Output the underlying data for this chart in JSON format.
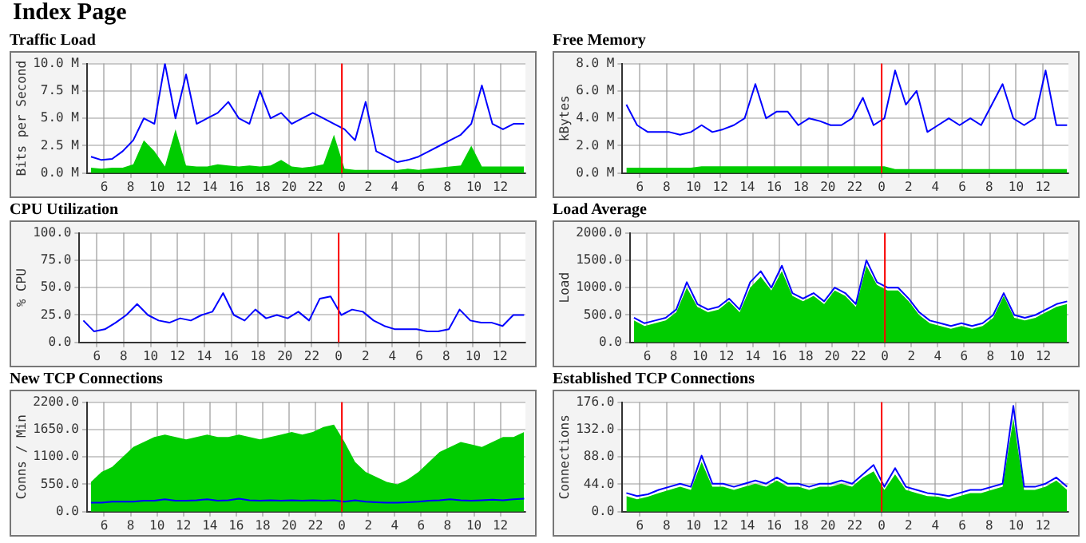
{
  "chart_data": [
    {
      "type": "other",
      "title": "Index Page"
    },
    {
      "type": "line",
      "title": "Traffic Load",
      "ylabel": "Bits per Second",
      "grid": true,
      "marker": "none",
      "x": [
        "--01-01T05:00",
        "--01-01T05:48",
        "--01-01T06:36",
        "--01-01T07:24",
        "--01-01T08:12",
        "--01-01T09:00",
        "--01-01T09:48",
        "--01-01T10:36",
        "--01-01T11:24",
        "--01-01T12:12",
        "--01-01T13:00",
        "--01-01T13:48",
        "--01-01T14:36",
        "--01-01T15:24",
        "--01-01T16:12",
        "--01-01T17:00",
        "--01-01T17:48",
        "--01-01T18:36",
        "--01-01T19:24",
        "--01-01T20:12",
        "--01-01T21:00",
        "--01-01T21:48",
        "--01-01T22:36",
        "--01-01T23:24",
        "--01-02T00:12",
        "--01-02T01:00",
        "--01-02T01:48",
        "--01-02T02:36",
        "--01-02T03:24",
        "--01-02T04:12",
        "--01-02T05:00",
        "--01-02T05:48",
        "--01-02T06:36",
        "--01-02T07:24",
        "--01-02T08:12",
        "--01-02T09:00",
        "--01-02T09:48",
        "--01-02T10:36",
        "--01-02T11:24",
        "--01-02T12:12",
        "--01-02T13:00",
        "--01-02T13:48"
      ],
      "xlim": [
        "--01-01T04:42",
        "--01-02T13:54"
      ],
      "xticks": [
        {
          "value": "--01-01T06:00",
          "label": "6"
        },
        {
          "value": "--01-01T08:00",
          "label": "8"
        },
        {
          "value": "--01-01T10:00",
          "label": "10"
        },
        {
          "value": "--01-01T12:00",
          "label": "12"
        },
        {
          "value": "--01-01T14:00",
          "label": "14"
        },
        {
          "value": "--01-01T16:00",
          "label": "16"
        },
        {
          "value": "--01-01T18:00",
          "label": "18"
        },
        {
          "value": "--01-01T20:00",
          "label": "20"
        },
        {
          "value": "--01-01T22:00",
          "label": "22"
        },
        {
          "value": "--01-02T00:00",
          "label": "0"
        },
        {
          "value": "--01-02T02:00",
          "label": "2"
        },
        {
          "value": "--01-02T04:00",
          "label": "4"
        },
        {
          "value": "--01-02T06:00",
          "label": "6"
        },
        {
          "value": "--01-02T08:00",
          "label": "8"
        },
        {
          "value": "--01-02T10:00",
          "label": "10"
        },
        {
          "value": "--01-02T12:00",
          "label": "12"
        }
      ],
      "ylim": [
        0,
        10
      ],
      "yticks": [
        {
          "value": 0,
          "label": "0.0 M"
        },
        {
          "value": 2.5,
          "label": "2.5 M"
        },
        {
          "value": 5,
          "label": "5.0 M"
        },
        {
          "value": 7.5,
          "label": "7.5 M"
        },
        {
          "value": 10,
          "label": "10.0 M"
        }
      ],
      "ref_lines": [
        {
          "axis": "x",
          "value": "--01-02T00:00",
          "color": "#ff0000"
        }
      ],
      "series": [
        {
          "type": "area",
          "color": "#00cc00",
          "values": [
            0.5,
            0.4,
            0.5,
            0.5,
            0.8,
            3.0,
            2.0,
            0.6,
            4.0,
            0.7,
            0.6,
            0.6,
            0.8,
            0.7,
            0.6,
            0.7,
            0.6,
            0.7,
            1.2,
            0.6,
            0.5,
            0.6,
            0.8,
            3.5,
            0.4,
            0.3,
            0.3,
            0.3,
            0.3,
            0.3,
            0.4,
            0.3,
            0.4,
            0.5,
            0.6,
            0.7,
            2.5,
            0.6,
            0.6,
            0.6,
            0.6,
            0.6
          ]
        },
        {
          "type": "line",
          "color": "#0000ff",
          "values": [
            1.5,
            1.2,
            1.3,
            2.0,
            3.0,
            5.0,
            4.5,
            10.0,
            5.0,
            9.0,
            4.5,
            5.0,
            5.5,
            6.5,
            5.0,
            4.5,
            7.5,
            5.0,
            5.5,
            4.5,
            5.0,
            5.5,
            5.0,
            4.5,
            4.0,
            3.0,
            6.5,
            2.0,
            1.5,
            1.0,
            1.2,
            1.5,
            2.0,
            2.5,
            3.0,
            3.5,
            4.5,
            8.0,
            4.5,
            4.0,
            4.5,
            4.5
          ]
        }
      ]
    },
    {
      "type": "line",
      "title": "Free Memory",
      "ylabel": "kBytes",
      "grid": true,
      "marker": "none",
      "x": [
        "--01-01T05:00",
        "--01-01T05:48",
        "--01-01T06:36",
        "--01-01T07:24",
        "--01-01T08:12",
        "--01-01T09:00",
        "--01-01T09:48",
        "--01-01T10:36",
        "--01-01T11:24",
        "--01-01T12:12",
        "--01-01T13:00",
        "--01-01T13:48",
        "--01-01T14:36",
        "--01-01T15:24",
        "--01-01T16:12",
        "--01-01T17:00",
        "--01-01T17:48",
        "--01-01T18:36",
        "--01-01T19:24",
        "--01-01T20:12",
        "--01-01T21:00",
        "--01-01T21:48",
        "--01-01T22:36",
        "--01-01T23:24",
        "--01-02T00:12",
        "--01-02T01:00",
        "--01-02T01:48",
        "--01-02T02:36",
        "--01-02T03:24",
        "--01-02T04:12",
        "--01-02T05:00",
        "--01-02T05:48",
        "--01-02T06:36",
        "--01-02T07:24",
        "--01-02T08:12",
        "--01-02T09:00",
        "--01-02T09:48",
        "--01-02T10:36",
        "--01-02T11:24",
        "--01-02T12:12",
        "--01-02T13:00",
        "--01-02T13:48"
      ],
      "xlim": [
        "--01-01T04:42",
        "--01-02T13:54"
      ],
      "xticks": [
        {
          "value": "--01-01T06:00",
          "label": "6"
        },
        {
          "value": "--01-01T08:00",
          "label": "8"
        },
        {
          "value": "--01-01T10:00",
          "label": "10"
        },
        {
          "value": "--01-01T12:00",
          "label": "12"
        },
        {
          "value": "--01-01T14:00",
          "label": "14"
        },
        {
          "value": "--01-01T16:00",
          "label": "16"
        },
        {
          "value": "--01-01T18:00",
          "label": "18"
        },
        {
          "value": "--01-01T20:00",
          "label": "20"
        },
        {
          "value": "--01-01T22:00",
          "label": "22"
        },
        {
          "value": "--01-02T00:00",
          "label": "0"
        },
        {
          "value": "--01-02T02:00",
          "label": "2"
        },
        {
          "value": "--01-02T04:00",
          "label": "4"
        },
        {
          "value": "--01-02T06:00",
          "label": "6"
        },
        {
          "value": "--01-02T08:00",
          "label": "8"
        },
        {
          "value": "--01-02T10:00",
          "label": "10"
        },
        {
          "value": "--01-02T12:00",
          "label": "12"
        }
      ],
      "ylim": [
        0,
        8
      ],
      "yticks": [
        {
          "value": 0,
          "label": "0.0 M"
        },
        {
          "value": 2,
          "label": "2.0 M"
        },
        {
          "value": 4,
          "label": "4.0 M"
        },
        {
          "value": 6,
          "label": "6.0 M"
        },
        {
          "value": 8,
          "label": "8.0 M"
        }
      ],
      "ref_lines": [
        {
          "axis": "x",
          "value": "--01-02T00:00",
          "color": "#ff0000"
        }
      ],
      "series": [
        {
          "type": "area",
          "color": "#00cc00",
          "values": [
            0.4,
            0.4,
            0.4,
            0.4,
            0.4,
            0.4,
            0.4,
            0.5,
            0.5,
            0.5,
            0.5,
            0.5,
            0.5,
            0.5,
            0.5,
            0.5,
            0.5,
            0.5,
            0.5,
            0.5,
            0.5,
            0.5,
            0.5,
            0.5,
            0.5,
            0.3,
            0.3,
            0.3,
            0.3,
            0.3,
            0.3,
            0.3,
            0.3,
            0.3,
            0.3,
            0.3,
            0.3,
            0.3,
            0.3,
            0.3,
            0.3,
            0.3
          ]
        },
        {
          "type": "line",
          "color": "#0000ff",
          "values": [
            5.0,
            3.5,
            3.0,
            3.0,
            3.0,
            2.8,
            3.0,
            3.5,
            3.0,
            3.2,
            3.5,
            4.0,
            6.5,
            4.0,
            4.5,
            4.5,
            3.5,
            4.0,
            3.8,
            3.5,
            3.5,
            4.0,
            5.5,
            3.5,
            4.0,
            7.5,
            5.0,
            6.0,
            3.0,
            3.5,
            4.0,
            3.5,
            4.0,
            3.5,
            5.0,
            6.5,
            4.0,
            3.5,
            4.0,
            7.5,
            3.5,
            3.5
          ]
        }
      ]
    },
    {
      "type": "line",
      "title": "CPU Utilization",
      "ylabel": "% CPU",
      "grid": true,
      "marker": "none",
      "x": [
        "--01-01T05:00",
        "--01-01T05:48",
        "--01-01T06:36",
        "--01-01T07:24",
        "--01-01T08:12",
        "--01-01T09:00",
        "--01-01T09:48",
        "--01-01T10:36",
        "--01-01T11:24",
        "--01-01T12:12",
        "--01-01T13:00",
        "--01-01T13:48",
        "--01-01T14:36",
        "--01-01T15:24",
        "--01-01T16:12",
        "--01-01T17:00",
        "--01-01T17:48",
        "--01-01T18:36",
        "--01-01T19:24",
        "--01-01T20:12",
        "--01-01T21:00",
        "--01-01T21:48",
        "--01-01T22:36",
        "--01-01T23:24",
        "--01-02T00:12",
        "--01-02T01:00",
        "--01-02T01:48",
        "--01-02T02:36",
        "--01-02T03:24",
        "--01-02T04:12",
        "--01-02T05:00",
        "--01-02T05:48",
        "--01-02T06:36",
        "--01-02T07:24",
        "--01-02T08:12",
        "--01-02T09:00",
        "--01-02T09:48",
        "--01-02T10:36",
        "--01-02T11:24",
        "--01-02T12:12",
        "--01-02T13:00",
        "--01-02T13:48"
      ],
      "xlim": [
        "--01-01T04:42",
        "--01-02T13:54"
      ],
      "xticks": [
        {
          "value": "--01-01T06:00",
          "label": "6"
        },
        {
          "value": "--01-01T08:00",
          "label": "8"
        },
        {
          "value": "--01-01T10:00",
          "label": "10"
        },
        {
          "value": "--01-01T12:00",
          "label": "12"
        },
        {
          "value": "--01-01T14:00",
          "label": "14"
        },
        {
          "value": "--01-01T16:00",
          "label": "16"
        },
        {
          "value": "--01-01T18:00",
          "label": "18"
        },
        {
          "value": "--01-01T20:00",
          "label": "20"
        },
        {
          "value": "--01-01T22:00",
          "label": "22"
        },
        {
          "value": "--01-02T00:00",
          "label": "0"
        },
        {
          "value": "--01-02T02:00",
          "label": "2"
        },
        {
          "value": "--01-02T04:00",
          "label": "4"
        },
        {
          "value": "--01-02T06:00",
          "label": "6"
        },
        {
          "value": "--01-02T08:00",
          "label": "8"
        },
        {
          "value": "--01-02T10:00",
          "label": "10"
        },
        {
          "value": "--01-02T12:00",
          "label": "12"
        }
      ],
      "ylim": [
        0,
        100
      ],
      "yticks": [
        {
          "value": 0,
          "label": "0.0"
        },
        {
          "value": 25,
          "label": "25.0"
        },
        {
          "value": 50,
          "label": "50.0"
        },
        {
          "value": 75,
          "label": "75.0"
        },
        {
          "value": 100,
          "label": "100.0"
        }
      ],
      "ref_lines": [
        {
          "axis": "x",
          "value": "--01-02T00:00",
          "color": "#ff0000"
        }
      ],
      "series": [
        {
          "type": "line",
          "color": "#0000ff",
          "values": [
            20,
            10,
            12,
            18,
            25,
            35,
            25,
            20,
            18,
            22,
            20,
            25,
            28,
            45,
            25,
            20,
            30,
            22,
            25,
            22,
            28,
            20,
            40,
            42,
            25,
            30,
            28,
            20,
            15,
            12,
            12,
            12,
            10,
            10,
            12,
            30,
            20,
            18,
            18,
            15,
            25,
            25
          ]
        }
      ]
    },
    {
      "type": "line",
      "title": "Load Average",
      "ylabel": "Load",
      "grid": true,
      "marker": "none",
      "x": [
        "--01-01T05:00",
        "--01-01T05:48",
        "--01-01T06:36",
        "--01-01T07:24",
        "--01-01T08:12",
        "--01-01T09:00",
        "--01-01T09:48",
        "--01-01T10:36",
        "--01-01T11:24",
        "--01-01T12:12",
        "--01-01T13:00",
        "--01-01T13:48",
        "--01-01T14:36",
        "--01-01T15:24",
        "--01-01T16:12",
        "--01-01T17:00",
        "--01-01T17:48",
        "--01-01T18:36",
        "--01-01T19:24",
        "--01-01T20:12",
        "--01-01T21:00",
        "--01-01T21:48",
        "--01-01T22:36",
        "--01-01T23:24",
        "--01-02T00:12",
        "--01-02T01:00",
        "--01-02T01:48",
        "--01-02T02:36",
        "--01-02T03:24",
        "--01-02T04:12",
        "--01-02T05:00",
        "--01-02T05:48",
        "--01-02T06:36",
        "--01-02T07:24",
        "--01-02T08:12",
        "--01-02T09:00",
        "--01-02T09:48",
        "--01-02T10:36",
        "--01-02T11:24",
        "--01-02T12:12",
        "--01-02T13:00",
        "--01-02T13:48"
      ],
      "xlim": [
        "--01-01T04:42",
        "--01-02T13:54"
      ],
      "xticks": [
        {
          "value": "--01-01T06:00",
          "label": "6"
        },
        {
          "value": "--01-01T08:00",
          "label": "8"
        },
        {
          "value": "--01-01T10:00",
          "label": "10"
        },
        {
          "value": "--01-01T12:00",
          "label": "12"
        },
        {
          "value": "--01-01T14:00",
          "label": "14"
        },
        {
          "value": "--01-01T16:00",
          "label": "16"
        },
        {
          "value": "--01-01T18:00",
          "label": "18"
        },
        {
          "value": "--01-01T20:00",
          "label": "20"
        },
        {
          "value": "--01-01T22:00",
          "label": "22"
        },
        {
          "value": "--01-02T00:00",
          "label": "0"
        },
        {
          "value": "--01-02T02:00",
          "label": "2"
        },
        {
          "value": "--01-02T04:00",
          "label": "4"
        },
        {
          "value": "--01-02T06:00",
          "label": "6"
        },
        {
          "value": "--01-02T08:00",
          "label": "8"
        },
        {
          "value": "--01-02T10:00",
          "label": "10"
        },
        {
          "value": "--01-02T12:00",
          "label": "12"
        }
      ],
      "ylim": [
        0,
        2000
      ],
      "yticks": [
        {
          "value": 0,
          "label": "0.0"
        },
        {
          "value": 500,
          "label": "500.0"
        },
        {
          "value": 1000,
          "label": "1000.0"
        },
        {
          "value": 1500,
          "label": "1500.0"
        },
        {
          "value": 2000,
          "label": "2000.0"
        }
      ],
      "ref_lines": [
        {
          "axis": "x",
          "value": "--01-02T00:00",
          "color": "#ff0000"
        }
      ],
      "series": [
        {
          "type": "area",
          "color": "#00cc00",
          "values": [
            400,
            300,
            350,
            400,
            550,
            1000,
            650,
            550,
            600,
            750,
            550,
            1000,
            1200,
            950,
            1300,
            850,
            750,
            850,
            700,
            950,
            850,
            650,
            1400,
            1050,
            950,
            950,
            750,
            500,
            350,
            300,
            250,
            300,
            250,
            300,
            450,
            850,
            450,
            400,
            450,
            550,
            650,
            700
          ]
        },
        {
          "type": "line",
          "color": "#0000ff",
          "values": [
            450,
            350,
            400,
            450,
            600,
            1100,
            700,
            600,
            650,
            800,
            600,
            1100,
            1300,
            1000,
            1400,
            900,
            800,
            900,
            750,
            1000,
            900,
            700,
            1500,
            1100,
            1000,
            1000,
            800,
            550,
            400,
            350,
            300,
            350,
            300,
            350,
            500,
            900,
            500,
            450,
            500,
            600,
            700,
            750
          ]
        }
      ]
    },
    {
      "type": "line",
      "title": "New TCP Connections",
      "ylabel": "Conns / Min",
      "grid": true,
      "marker": "none",
      "x": [
        "--01-01T05:00",
        "--01-01T05:48",
        "--01-01T06:36",
        "--01-01T07:24",
        "--01-01T08:12",
        "--01-01T09:00",
        "--01-01T09:48",
        "--01-01T10:36",
        "--01-01T11:24",
        "--01-01T12:12",
        "--01-01T13:00",
        "--01-01T13:48",
        "--01-01T14:36",
        "--01-01T15:24",
        "--01-01T16:12",
        "--01-01T17:00",
        "--01-01T17:48",
        "--01-01T18:36",
        "--01-01T19:24",
        "--01-01T20:12",
        "--01-01T21:00",
        "--01-01T21:48",
        "--01-01T22:36",
        "--01-01T23:24",
        "--01-02T00:12",
        "--01-02T01:00",
        "--01-02T01:48",
        "--01-02T02:36",
        "--01-02T03:24",
        "--01-02T04:12",
        "--01-02T05:00",
        "--01-02T05:48",
        "--01-02T06:36",
        "--01-02T07:24",
        "--01-02T08:12",
        "--01-02T09:00",
        "--01-02T09:48",
        "--01-02T10:36",
        "--01-02T11:24",
        "--01-02T12:12",
        "--01-02T13:00",
        "--01-02T13:48"
      ],
      "xlim": [
        "--01-01T04:42",
        "--01-02T13:54"
      ],
      "xticks": [
        {
          "value": "--01-01T06:00",
          "label": "6"
        },
        {
          "value": "--01-01T08:00",
          "label": "8"
        },
        {
          "value": "--01-01T10:00",
          "label": "10"
        },
        {
          "value": "--01-01T12:00",
          "label": "12"
        },
        {
          "value": "--01-01T14:00",
          "label": "14"
        },
        {
          "value": "--01-01T16:00",
          "label": "16"
        },
        {
          "value": "--01-01T18:00",
          "label": "18"
        },
        {
          "value": "--01-01T20:00",
          "label": "20"
        },
        {
          "value": "--01-01T22:00",
          "label": "22"
        },
        {
          "value": "--01-02T00:00",
          "label": "0"
        },
        {
          "value": "--01-02T02:00",
          "label": "2"
        },
        {
          "value": "--01-02T04:00",
          "label": "4"
        },
        {
          "value": "--01-02T06:00",
          "label": "6"
        },
        {
          "value": "--01-02T08:00",
          "label": "8"
        },
        {
          "value": "--01-02T10:00",
          "label": "10"
        },
        {
          "value": "--01-02T12:00",
          "label": "12"
        }
      ],
      "ylim": [
        0,
        2200
      ],
      "yticks": [
        {
          "value": 0,
          "label": "0.0"
        },
        {
          "value": 550,
          "label": "550.0"
        },
        {
          "value": 1100,
          "label": "1100.0"
        },
        {
          "value": 1650,
          "label": "1650.0"
        },
        {
          "value": 2200,
          "label": "2200.0"
        }
      ],
      "ref_lines": [
        {
          "axis": "x",
          "value": "--01-02T00:00",
          "color": "#ff0000"
        }
      ],
      "series": [
        {
          "type": "area",
          "color": "#00cc00",
          "values": [
            600,
            800,
            900,
            1100,
            1300,
            1400,
            1500,
            1550,
            1500,
            1450,
            1500,
            1550,
            1500,
            1500,
            1550,
            1500,
            1450,
            1500,
            1550,
            1600,
            1550,
            1600,
            1700,
            1750,
            1400,
            1000,
            800,
            700,
            600,
            550,
            650,
            800,
            1000,
            1200,
            1300,
            1400,
            1350,
            1300,
            1400,
            1500,
            1500,
            1600
          ]
        },
        {
          "type": "line",
          "color": "#0000ff",
          "values": [
            180,
            180,
            200,
            200,
            200,
            220,
            220,
            250,
            220,
            220,
            230,
            250,
            220,
            230,
            260,
            230,
            220,
            230,
            220,
            230,
            220,
            230,
            220,
            230,
            200,
            230,
            200,
            190,
            180,
            180,
            190,
            200,
            220,
            230,
            250,
            230,
            220,
            230,
            240,
            230,
            250,
            260
          ]
        }
      ]
    },
    {
      "type": "line",
      "title": "Established TCP Connections",
      "ylabel": "Connections",
      "grid": true,
      "marker": "none",
      "x": [
        "--01-01T05:00",
        "--01-01T05:48",
        "--01-01T06:36",
        "--01-01T07:24",
        "--01-01T08:12",
        "--01-01T09:00",
        "--01-01T09:48",
        "--01-01T10:36",
        "--01-01T11:24",
        "--01-01T12:12",
        "--01-01T13:00",
        "--01-01T13:48",
        "--01-01T14:36",
        "--01-01T15:24",
        "--01-01T16:12",
        "--01-01T17:00",
        "--01-01T17:48",
        "--01-01T18:36",
        "--01-01T19:24",
        "--01-01T20:12",
        "--01-01T21:00",
        "--01-01T21:48",
        "--01-01T22:36",
        "--01-01T23:24",
        "--01-02T00:12",
        "--01-02T01:00",
        "--01-02T01:48",
        "--01-02T02:36",
        "--01-02T03:24",
        "--01-02T04:12",
        "--01-02T05:00",
        "--01-02T05:48",
        "--01-02T06:36",
        "--01-02T07:24",
        "--01-02T08:12",
        "--01-02T09:00",
        "--01-02T09:48",
        "--01-02T10:36",
        "--01-02T11:24",
        "--01-02T12:12",
        "--01-02T13:00",
        "--01-02T13:48"
      ],
      "xlim": [
        "--01-01T04:42",
        "--01-02T13:54"
      ],
      "xticks": [
        {
          "value": "--01-01T06:00",
          "label": "6"
        },
        {
          "value": "--01-01T08:00",
          "label": "8"
        },
        {
          "value": "--01-01T10:00",
          "label": "10"
        },
        {
          "value": "--01-01T12:00",
          "label": "12"
        },
        {
          "value": "--01-01T14:00",
          "label": "14"
        },
        {
          "value": "--01-01T16:00",
          "label": "16"
        },
        {
          "value": "--01-01T18:00",
          "label": "18"
        },
        {
          "value": "--01-01T20:00",
          "label": "20"
        },
        {
          "value": "--01-01T22:00",
          "label": "22"
        },
        {
          "value": "--01-02T00:00",
          "label": "0"
        },
        {
          "value": "--01-02T02:00",
          "label": "2"
        },
        {
          "value": "--01-02T04:00",
          "label": "4"
        },
        {
          "value": "--01-02T06:00",
          "label": "6"
        },
        {
          "value": "--01-02T08:00",
          "label": "8"
        },
        {
          "value": "--01-02T10:00",
          "label": "10"
        },
        {
          "value": "--01-02T12:00",
          "label": "12"
        }
      ],
      "ylim": [
        0,
        176
      ],
      "yticks": [
        {
          "value": 0,
          "label": "0.0"
        },
        {
          "value": 44,
          "label": "44.0"
        },
        {
          "value": 88,
          "label": "88.0"
        },
        {
          "value": 132,
          "label": "132.0"
        },
        {
          "value": 176,
          "label": "176.0"
        }
      ],
      "ref_lines": [
        {
          "axis": "x",
          "value": "--01-02T00:00",
          "color": "#ff0000"
        }
      ],
      "series": [
        {
          "type": "area",
          "color": "#00cc00",
          "values": [
            25,
            20,
            24,
            30,
            35,
            40,
            35,
            80,
            40,
            40,
            35,
            40,
            45,
            40,
            50,
            40,
            40,
            35,
            40,
            40,
            45,
            40,
            55,
            65,
            35,
            60,
            35,
            30,
            25,
            24,
            20,
            25,
            30,
            30,
            35,
            40,
            150,
            35,
            35,
            40,
            50,
            35
          ]
        },
        {
          "type": "line",
          "color": "#0000ff",
          "values": [
            30,
            25,
            28,
            35,
            40,
            45,
            40,
            90,
            45,
            45,
            40,
            45,
            50,
            45,
            55,
            45,
            45,
            40,
            45,
            45,
            50,
            45,
            60,
            75,
            40,
            70,
            40,
            35,
            30,
            28,
            25,
            30,
            35,
            35,
            40,
            45,
            170,
            40,
            40,
            45,
            55,
            40
          ]
        }
      ]
    }
  ]
}
